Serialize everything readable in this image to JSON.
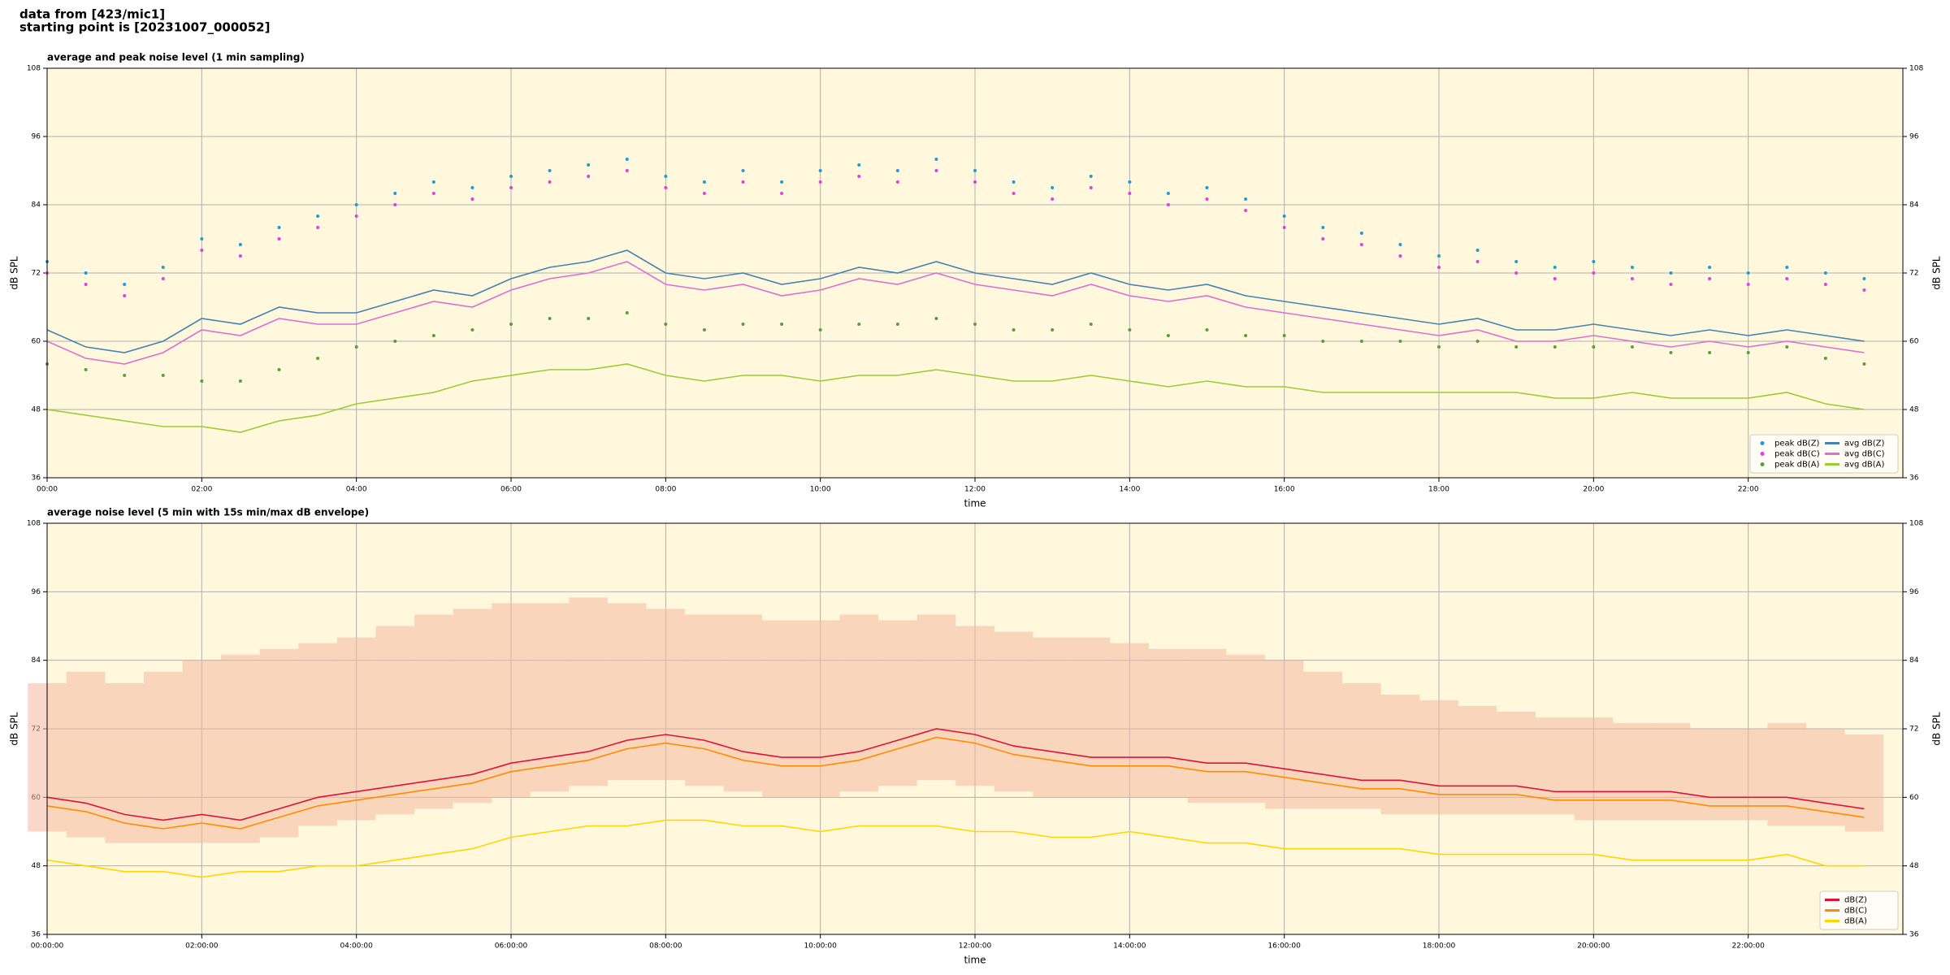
{
  "header": [
    "data from [423/mic1]",
    "starting point is [20231007_000052]"
  ],
  "chart_data": [
    {
      "type": "line",
      "title": "average and peak noise level (1 min sampling)",
      "xlabel": "time",
      "ylabel": "dB SPL",
      "x": [
        0,
        0.5,
        1,
        1.5,
        2,
        2.5,
        3,
        3.5,
        4,
        4.5,
        5,
        5.5,
        6,
        6.5,
        7,
        7.5,
        8,
        8.5,
        9,
        9.5,
        10,
        10.5,
        11,
        11.5,
        12,
        12.5,
        13,
        13.5,
        14,
        14.5,
        15,
        15.5,
        16,
        16.5,
        17,
        17.5,
        18,
        18.5,
        19,
        19.5,
        20,
        20.5,
        21,
        21.5,
        22,
        22.5,
        23,
        23.5
      ],
      "xlim": [
        0,
        24
      ],
      "xticks": [
        {
          "value": 0,
          "label": "00:00"
        },
        {
          "value": 2,
          "label": "02:00"
        },
        {
          "value": 4,
          "label": "04:00"
        },
        {
          "value": 6,
          "label": "06:00"
        },
        {
          "value": 8,
          "label": "08:00"
        },
        {
          "value": 10,
          "label": "10:00"
        },
        {
          "value": 12,
          "label": "12:00"
        },
        {
          "value": 14,
          "label": "14:00"
        },
        {
          "value": 16,
          "label": "16:00"
        },
        {
          "value": 18,
          "label": "18:00"
        },
        {
          "value": 20,
          "label": "20:00"
        },
        {
          "value": 22,
          "label": "22:00"
        }
      ],
      "ylim": [
        36,
        108
      ],
      "yticks": [
        36,
        48,
        60,
        72,
        84,
        96,
        108
      ],
      "grid": true,
      "legend": "lower right",
      "legend_columns": 2,
      "series": [
        {
          "name": "peak dB(Z)",
          "mark": "point",
          "color": "#1f9bd8",
          "values": [
            74,
            72,
            70,
            73,
            78,
            77,
            80,
            82,
            84,
            86,
            88,
            87,
            89,
            90,
            91,
            92,
            89,
            88,
            90,
            88,
            90,
            91,
            90,
            92,
            90,
            88,
            87,
            89,
            88,
            86,
            87,
            85,
            82,
            80,
            79,
            77,
            75,
            76,
            74,
            73,
            74,
            73,
            72,
            73,
            72,
            73,
            72,
            71
          ]
        },
        {
          "name": "peak dB(C)",
          "mark": "point",
          "color": "#e040e0",
          "values": [
            72,
            70,
            68,
            71,
            76,
            75,
            78,
            80,
            82,
            84,
            86,
            85,
            87,
            88,
            89,
            90,
            87,
            86,
            88,
            86,
            88,
            89,
            88,
            90,
            88,
            86,
            85,
            87,
            86,
            84,
            85,
            83,
            80,
            78,
            77,
            75,
            73,
            74,
            72,
            71,
            72,
            71,
            70,
            71,
            70,
            71,
            70,
            69
          ]
        },
        {
          "name": "peak dB(A)",
          "mark": "point",
          "color": "#5a9e3a",
          "values": [
            56,
            55,
            54,
            54,
            53,
            53,
            55,
            57,
            59,
            60,
            61,
            62,
            63,
            64,
            64,
            65,
            63,
            62,
            63,
            63,
            62,
            63,
            63,
            64,
            63,
            62,
            62,
            63,
            62,
            61,
            62,
            61,
            61,
            60,
            60,
            60,
            59,
            60,
            59,
            59,
            59,
            59,
            58,
            58,
            58,
            59,
            57,
            56
          ]
        },
        {
          "name": "avg dB(Z)",
          "mark": "line",
          "color": "#4682b4",
          "values": [
            62,
            59,
            58,
            60,
            64,
            63,
            66,
            65,
            65,
            67,
            69,
            68,
            71,
            73,
            74,
            76,
            72,
            71,
            72,
            70,
            71,
            73,
            72,
            74,
            72,
            71,
            70,
            72,
            70,
            69,
            70,
            68,
            67,
            66,
            65,
            64,
            63,
            64,
            62,
            62,
            63,
            62,
            61,
            62,
            61,
            62,
            61,
            60
          ]
        },
        {
          "name": "avg dB(C)",
          "mark": "line",
          "color": "#da70d6",
          "values": [
            60,
            57,
            56,
            58,
            62,
            61,
            64,
            63,
            63,
            65,
            67,
            66,
            69,
            71,
            72,
            74,
            70,
            69,
            70,
            68,
            69,
            71,
            70,
            72,
            70,
            69,
            68,
            70,
            68,
            67,
            68,
            66,
            65,
            64,
            63,
            62,
            61,
            62,
            60,
            60,
            61,
            60,
            59,
            60,
            59,
            60,
            59,
            58
          ]
        },
        {
          "name": "avg dB(A)",
          "mark": "line",
          "color": "#9acd32",
          "values": [
            48,
            47,
            46,
            45,
            45,
            44,
            46,
            47,
            49,
            50,
            51,
            53,
            54,
            55,
            55,
            56,
            54,
            53,
            54,
            54,
            53,
            54,
            54,
            55,
            54,
            53,
            53,
            54,
            53,
            52,
            53,
            52,
            52,
            51,
            51,
            51,
            51,
            51,
            51,
            50,
            50,
            51,
            50,
            50,
            50,
            51,
            49,
            48
          ]
        }
      ]
    },
    {
      "type": "line",
      "title": "average noise level (5 min with 15s min/max dB envelope)",
      "xlabel": "time",
      "ylabel": "dB SPL",
      "x": [
        0,
        0.5,
        1,
        1.5,
        2,
        2.5,
        3,
        3.5,
        4,
        4.5,
        5,
        5.5,
        6,
        6.5,
        7,
        7.5,
        8,
        8.5,
        9,
        9.5,
        10,
        10.5,
        11,
        11.5,
        12,
        12.5,
        13,
        13.5,
        14,
        14.5,
        15,
        15.5,
        16,
        16.5,
        17,
        17.5,
        18,
        18.5,
        19,
        19.5,
        20,
        20.5,
        21,
        21.5,
        22,
        22.5,
        23,
        23.5
      ],
      "xlim": [
        0,
        24
      ],
      "xticks": [
        {
          "value": 0,
          "label": "00:00:00"
        },
        {
          "value": 2,
          "label": "02:00:00"
        },
        {
          "value": 4,
          "label": "04:00:00"
        },
        {
          "value": 6,
          "label": "06:00:00"
        },
        {
          "value": 8,
          "label": "08:00:00"
        },
        {
          "value": 10,
          "label": "10:00:00"
        },
        {
          "value": 12,
          "label": "12:00:00"
        },
        {
          "value": 14,
          "label": "14:00:00"
        },
        {
          "value": 16,
          "label": "16:00:00"
        },
        {
          "value": 18,
          "label": "18:00:00"
        },
        {
          "value": 20,
          "label": "20:00:00"
        },
        {
          "value": 22,
          "label": "22:00:00"
        }
      ],
      "ylim": [
        36,
        108
      ],
      "yticks": [
        36,
        48,
        60,
        72,
        84,
        96,
        108
      ],
      "grid": true,
      "legend": "lower right",
      "legend_columns": 1,
      "envelope": {
        "color": "#f4b8a0",
        "min": [
          54,
          53,
          52,
          52,
          52,
          52,
          53,
          55,
          56,
          57,
          58,
          59,
          60,
          61,
          62,
          63,
          63,
          62,
          61,
          60,
          60,
          61,
          62,
          63,
          62,
          61,
          60,
          60,
          60,
          60,
          59,
          59,
          58,
          58,
          58,
          57,
          57,
          57,
          57,
          57,
          56,
          56,
          56,
          56,
          56,
          55,
          55,
          54
        ],
        "max": [
          80,
          82,
          80,
          82,
          84,
          85,
          86,
          87,
          88,
          90,
          92,
          93,
          94,
          94,
          95,
          94,
          93,
          92,
          92,
          91,
          91,
          92,
          91,
          92,
          90,
          89,
          88,
          88,
          87,
          86,
          86,
          85,
          84,
          82,
          80,
          78,
          77,
          76,
          75,
          74,
          74,
          73,
          73,
          72,
          72,
          73,
          72,
          71
        ]
      },
      "series": [
        {
          "name": "dB(Z)",
          "mark": "line",
          "color": "#dc143c",
          "values": [
            60,
            59,
            57,
            56,
            57,
            56,
            58,
            60,
            61,
            62,
            63,
            64,
            66,
            67,
            68,
            70,
            71,
            70,
            68,
            67,
            67,
            68,
            70,
            72,
            71,
            69,
            68,
            67,
            67,
            67,
            66,
            66,
            65,
            64,
            63,
            63,
            62,
            62,
            62,
            61,
            61,
            61,
            61,
            60,
            60,
            60,
            59,
            58
          ]
        },
        {
          "name": "dB(C)",
          "mark": "line",
          "color": "#ff8c00",
          "values": [
            58.5,
            57.5,
            55.5,
            54.5,
            55.5,
            54.5,
            56.5,
            58.5,
            59.5,
            60.5,
            61.5,
            62.5,
            64.5,
            65.5,
            66.5,
            68.5,
            69.5,
            68.5,
            66.5,
            65.5,
            65.5,
            66.5,
            68.5,
            70.5,
            69.5,
            67.5,
            66.5,
            65.5,
            65.5,
            65.5,
            64.5,
            64.5,
            63.5,
            62.5,
            61.5,
            61.5,
            60.5,
            60.5,
            60.5,
            59.5,
            59.5,
            59.5,
            59.5,
            58.5,
            58.5,
            58.5,
            57.5,
            56.5
          ]
        },
        {
          "name": "dB(A)",
          "mark": "line",
          "color": "#ffd700",
          "values": [
            49,
            48,
            47,
            47,
            46,
            47,
            47,
            48,
            48,
            49,
            50,
            51,
            53,
            54,
            55,
            55,
            56,
            56,
            55,
            55,
            54,
            55,
            55,
            55,
            54,
            54,
            53,
            53,
            54,
            53,
            52,
            52,
            51,
            51,
            51,
            51,
            50,
            50,
            50,
            50,
            50,
            49,
            49,
            49,
            49,
            50,
            48,
            48
          ]
        }
      ]
    }
  ]
}
